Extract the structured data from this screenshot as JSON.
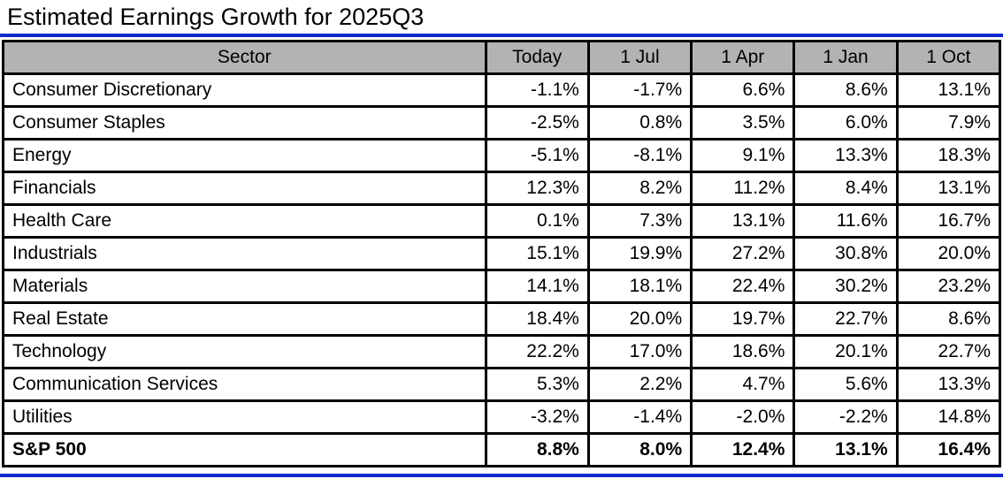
{
  "title": "Estimated Earnings Growth for 2025Q3",
  "colors": {
    "accent_blue": "#1428d0",
    "header_bg": "#b3b3b3",
    "border_black": "#000000"
  },
  "chart_data": {
    "type": "table",
    "title": "Estimated Earnings Growth for 2025Q3",
    "value_format": "percent",
    "columns": [
      "Sector",
      "Today",
      "1 Jul",
      "1 Apr",
      "1 Jan",
      "1 Oct"
    ],
    "rows": [
      {
        "sector": "Consumer Discretionary",
        "values": [
          "-1.1%",
          "-1.7%",
          "6.6%",
          "8.6%",
          "13.1%"
        ],
        "bold": false
      },
      {
        "sector": "Consumer Staples",
        "values": [
          "-2.5%",
          "0.8%",
          "3.5%",
          "6.0%",
          "7.9%"
        ],
        "bold": false
      },
      {
        "sector": "Energy",
        "values": [
          "-5.1%",
          "-8.1%",
          "9.1%",
          "13.3%",
          "18.3%"
        ],
        "bold": false
      },
      {
        "sector": "Financials",
        "values": [
          "12.3%",
          "8.2%",
          "11.2%",
          "8.4%",
          "13.1%"
        ],
        "bold": false
      },
      {
        "sector": "Health Care",
        "values": [
          "0.1%",
          "7.3%",
          "13.1%",
          "11.6%",
          "16.7%"
        ],
        "bold": false
      },
      {
        "sector": "Industrials",
        "values": [
          "15.1%",
          "19.9%",
          "27.2%",
          "30.8%",
          "20.0%"
        ],
        "bold": false
      },
      {
        "sector": "Materials",
        "values": [
          "14.1%",
          "18.1%",
          "22.4%",
          "30.2%",
          "23.2%"
        ],
        "bold": false
      },
      {
        "sector": "Real Estate",
        "values": [
          "18.4%",
          "20.0%",
          "19.7%",
          "22.7%",
          "8.6%"
        ],
        "bold": false
      },
      {
        "sector": "Technology",
        "values": [
          "22.2%",
          "17.0%",
          "18.6%",
          "20.1%",
          "22.7%"
        ],
        "bold": false
      },
      {
        "sector": "Communication Services",
        "values": [
          "5.3%",
          "2.2%",
          "4.7%",
          "5.6%",
          "13.3%"
        ],
        "bold": false
      },
      {
        "sector": "Utilities",
        "values": [
          "-3.2%",
          "-1.4%",
          "-2.0%",
          "-2.2%",
          "14.8%"
        ],
        "bold": false
      },
      {
        "sector": "S&P 500",
        "values": [
          "8.8%",
          "8.0%",
          "12.4%",
          "13.1%",
          "16.4%"
        ],
        "bold": true
      }
    ]
  }
}
